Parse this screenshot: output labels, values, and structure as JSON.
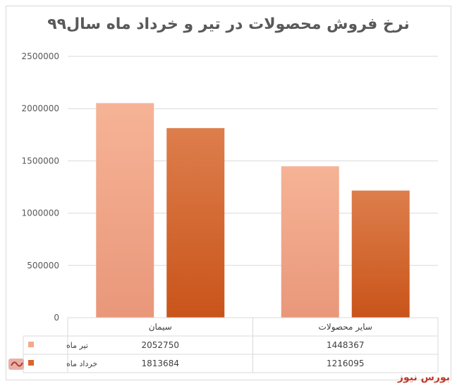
{
  "chart_data": {
    "type": "bar",
    "title": "نرخ فروش محصولات در تیر و خرداد ماه سال۹۹",
    "categories": [
      "سیمان",
      "سایر محصولات"
    ],
    "series": [
      {
        "name": "تیر ماه",
        "values": [
          2052750,
          1448367
        ],
        "color": "#f4a98a"
      },
      {
        "name": "خرداد ماه",
        "values": [
          1813684,
          1216095
        ],
        "color": "#d9662a"
      }
    ],
    "y_ticks": [
      "0",
      "500000",
      "1000000",
      "1500000",
      "2000000",
      "2500000"
    ],
    "ylim": [
      0,
      2500000
    ],
    "grid": true,
    "legend": "data-table-left"
  },
  "watermark": {
    "text": "بورس نیوز"
  }
}
